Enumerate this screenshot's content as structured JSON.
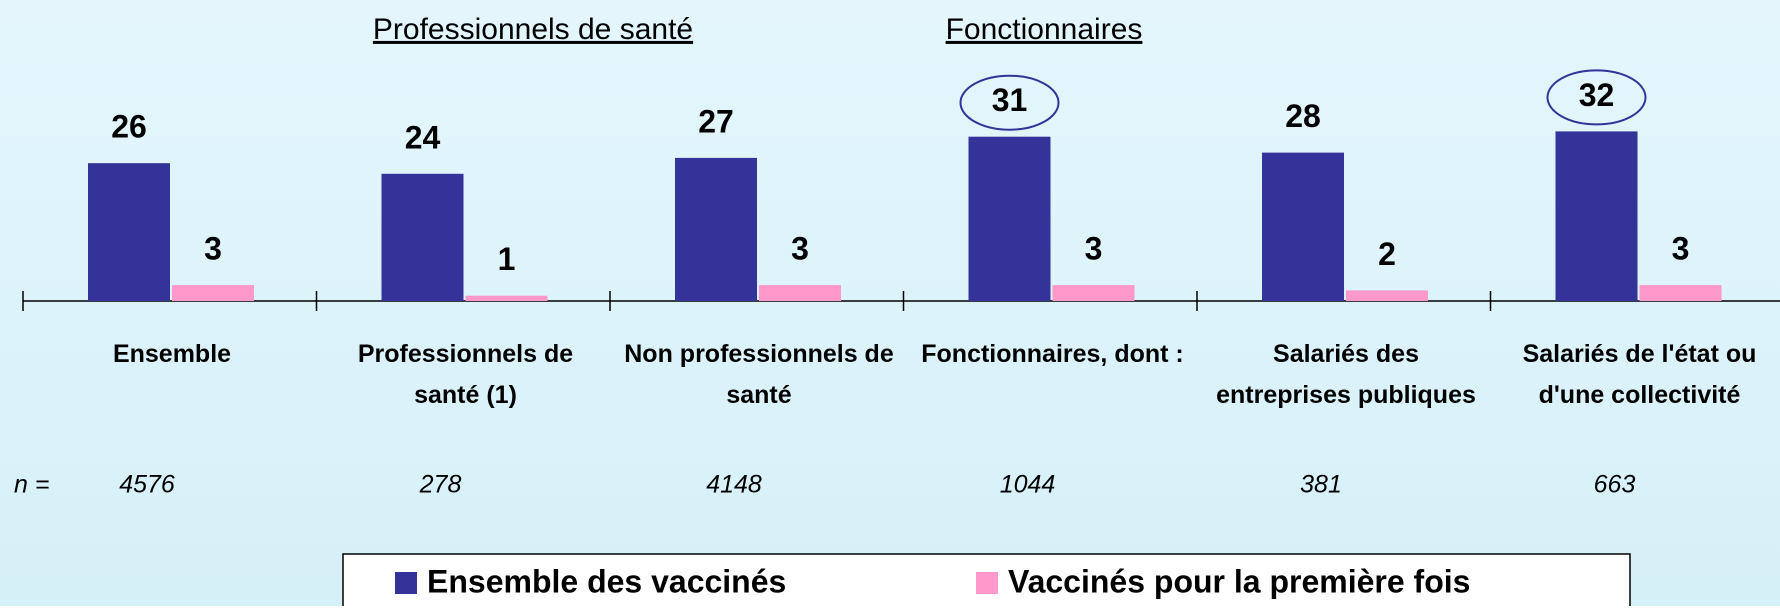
{
  "chart_data": {
    "type": "bar",
    "headings": [
      "Professionnels de santé",
      "Fonctionnaires"
    ],
    "categories": [
      "Ensemble",
      "Professionnels de santé (1)",
      "Non professionnels de santé",
      "Fonctionnaires, dont :",
      "Salariés des entreprises publiques",
      "Salariés de l'état ou d'une collectivité"
    ],
    "n_label": "n =",
    "n_values": [
      4576,
      278,
      4148,
      1044,
      381,
      663
    ],
    "series": [
      {
        "name": "Ensemble des vaccinés",
        "color": "#333399",
        "values": [
          26,
          24,
          27,
          31,
          28,
          32
        ],
        "circled": [
          3,
          5
        ]
      },
      {
        "name": "Vaccinés pour la première fois",
        "color": "#ff99cc",
        "values": [
          3,
          1,
          3,
          3,
          2,
          3
        ]
      }
    ]
  }
}
